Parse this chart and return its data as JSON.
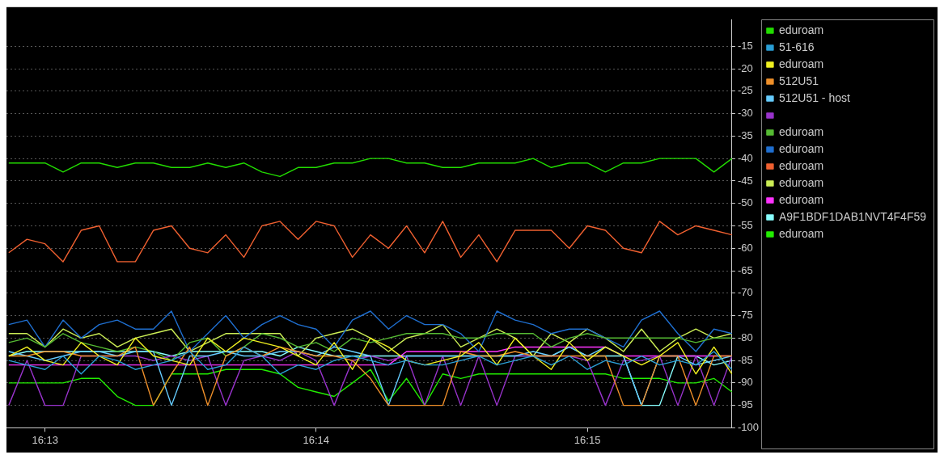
{
  "chart_data": {
    "type": "line",
    "x": [
      16.21444,
      16.21556,
      16.21667,
      16.21778,
      16.21889,
      16.22,
      16.22111,
      16.22222,
      16.22333,
      16.22444,
      16.22556,
      16.22667,
      16.22778,
      16.22889,
      16.23,
      16.23111,
      16.23222,
      16.23333,
      16.23444,
      16.23556,
      16.23667,
      16.23778,
      16.23889,
      16.24,
      16.24111,
      16.24222,
      16.24333,
      16.24444,
      16.24556,
      16.24667,
      16.24778,
      16.24889,
      16.25,
      16.25111,
      16.25222,
      16.25333,
      16.25444,
      16.25556,
      16.25667,
      16.25778,
      16.25889
    ],
    "xlim": [
      16.2143,
      16.25889
    ],
    "xticks": [
      {
        "value": 16.21667,
        "label": "16:13"
      },
      {
        "value": 16.23333,
        "label": "16:14"
      },
      {
        "value": 16.25,
        "label": "16:15"
      }
    ],
    "ylim": [
      -100,
      -9
    ],
    "yticks": [
      -15,
      -20,
      -25,
      -30,
      -35,
      -40,
      -45,
      -50,
      -55,
      -60,
      -65,
      -70,
      -75,
      -80,
      -85,
      -90,
      -95,
      -100
    ],
    "grid": "y",
    "legend": "top right",
    "marker": "none",
    "line_style": "solid",
    "series": [
      {
        "name": "eduroam",
        "color": "#22dd00",
        "values": [
          -41,
          -41,
          -41,
          -43,
          -41,
          -41,
          -42,
          -41,
          -41,
          -42,
          -42,
          -41,
          -42,
          -41,
          -43,
          -44,
          -42,
          -42,
          -41,
          -41,
          -40,
          -40,
          -41,
          -41,
          -42,
          -42,
          -41,
          -41,
          -41,
          -40,
          -42,
          -41,
          -41,
          -43,
          -41,
          -41,
          -40,
          -40,
          -40,
          -43,
          -40
        ]
      },
      {
        "name": "51-616",
        "color": "#2a9fd6",
        "values": [
          -85,
          -86,
          -87,
          -84,
          -88,
          -84,
          -85,
          -87,
          -86,
          -85,
          -83,
          -87,
          -86,
          -82,
          -84,
          -88,
          -86,
          -87,
          -85,
          -84,
          -85,
          -86,
          -85,
          -86,
          -86,
          -85,
          -84,
          -86,
          -85,
          -84,
          -86,
          -84,
          -87,
          -85,
          -86,
          -84,
          -86,
          -85,
          -86,
          -83,
          -87
        ]
      },
      {
        "name": "eduroam",
        "color": "#f0f020",
        "values": [
          -84,
          -82,
          -85,
          -86,
          -81,
          -84,
          -86,
          -80,
          -84,
          -85,
          -86,
          -80,
          -83,
          -80,
          -81,
          -82,
          -84,
          -86,
          -81,
          -87,
          -80,
          -82,
          -85,
          -86,
          -85,
          -84,
          -81,
          -86,
          -80,
          -84,
          -87,
          -81,
          -85,
          -82,
          -84,
          -86,
          -84,
          -81,
          -88,
          -82,
          -88
        ]
      },
      {
        "name": "512U51",
        "color": "#f0902a",
        "values": [
          -84,
          -84,
          -83,
          -83,
          -84,
          -84,
          -84,
          -82,
          -95,
          -88,
          -82,
          -95,
          -84,
          -82,
          -84,
          -82,
          -83,
          -84,
          -84,
          -85,
          -89,
          -95,
          -95,
          -95,
          -95,
          -83,
          -84,
          -84,
          -83,
          -84,
          -84,
          -84,
          -84,
          -84,
          -95,
          -95,
          -84,
          -84,
          -95,
          -84,
          -84
        ]
      },
      {
        "name": "512U51 - host",
        "color": "#66ccff",
        "values": [
          -83,
          -84,
          -85,
          -84,
          -83,
          -83,
          -84,
          -83,
          -83,
          -95,
          -84,
          -84,
          -83,
          -84,
          -84,
          -83,
          -83,
          -84,
          -82,
          -83,
          -84,
          -95,
          -84,
          -84,
          -84,
          -84,
          -84,
          -84,
          -84,
          -83,
          -84,
          -82,
          -84,
          -82,
          -84,
          -95,
          -84,
          -84,
          -86,
          -85,
          -84
        ]
      },
      {
        "color": "#9933cc",
        "values": [
          -95,
          -85,
          -95,
          -95,
          -84,
          -84,
          -84,
          -84,
          -85,
          -84,
          -85,
          -84,
          -95,
          -85,
          -84,
          -85,
          -83,
          -85,
          -95,
          -85,
          -84,
          -85,
          -84,
          -95,
          -84,
          -95,
          -84,
          -95,
          -84,
          -84,
          -84,
          -84,
          -85,
          -95,
          -85,
          -85,
          -84,
          -95,
          -84,
          -95,
          -84
        ]
      },
      {
        "name": "eduroam",
        "color": "#55bb33",
        "values": [
          -81,
          -80,
          -82,
          -79,
          -81,
          -82,
          -83,
          -82,
          -83,
          -85,
          -81,
          -80,
          -84,
          -82,
          -79,
          -80,
          -82,
          -81,
          -83,
          -80,
          -81,
          -80,
          -79,
          -79,
          -79,
          -80,
          -80,
          -79,
          -79,
          -79,
          -82,
          -80,
          -79,
          -80,
          -80,
          -80,
          -80,
          -80,
          -81,
          -80,
          -80
        ]
      },
      {
        "name": "eduroam",
        "color": "#1f6fd0",
        "values": [
          -77,
          -76,
          -82,
          -76,
          -80,
          -77,
          -76,
          -78,
          -78,
          -74,
          -83,
          -79,
          -75,
          -80,
          -77,
          -75,
          -77,
          -78,
          -82,
          -76,
          -74,
          -78,
          -75,
          -77,
          -77,
          -79,
          -83,
          -74,
          -76,
          -77,
          -79,
          -78,
          -78,
          -80,
          -82,
          -76,
          -74,
          -79,
          -83,
          -78,
          -79
        ]
      },
      {
        "name": "eduroam",
        "color": "#f06030",
        "values": [
          -61,
          -58,
          -59,
          -63,
          -56,
          -55,
          -63,
          -63,
          -56,
          -55,
          -60,
          -61,
          -57,
          -62,
          -55,
          -54,
          -58,
          -54,
          -55,
          -62,
          -57,
          -60,
          -55,
          -61,
          -54,
          -62,
          -57,
          -63,
          -56,
          -56,
          -56,
          -60,
          -55,
          -56,
          -60,
          -61,
          -54,
          -57,
          -55,
          -56,
          -57
        ]
      },
      {
        "name": "eduroam",
        "color": "#ccee55",
        "values": [
          -79,
          -79,
          -82,
          -78,
          -80,
          -79,
          -82,
          -80,
          -79,
          -78,
          -83,
          -81,
          -79,
          -79,
          -79,
          -79,
          -84,
          -80,
          -79,
          -78,
          -80,
          -83,
          -80,
          -79,
          -77,
          -82,
          -80,
          -78,
          -80,
          -84,
          -79,
          -81,
          -78,
          -80,
          -83,
          -78,
          -83,
          -80,
          -78,
          -80,
          -79
        ]
      },
      {
        "name": "eduroam",
        "color": "#ff33ff",
        "values": [
          -86,
          -86,
          -86,
          -86,
          -86,
          -86,
          -86,
          -86,
          -86,
          -86,
          -86,
          -86,
          -86,
          -86,
          -86,
          -86,
          -86,
          -86,
          -86,
          -86,
          -86,
          -86,
          -83,
          -83,
          -83,
          -83,
          -83,
          -83,
          -82,
          -82,
          -82,
          -82,
          -82,
          -82,
          -84,
          -84,
          -84,
          -84,
          -84,
          -84,
          -84
        ]
      },
      {
        "name": "A9F1BDF1DAB1NVT4F4F59",
        "color": "#88ffff",
        "values": [
          -84,
          -83,
          -83,
          -83,
          -83,
          -83,
          -83,
          -83,
          -83,
          -84,
          -83,
          -83,
          -83,
          -83,
          -83,
          -84,
          -82,
          -83,
          -84,
          -84,
          -84,
          -84,
          -84,
          -84,
          -84,
          -84,
          -84,
          -84,
          -84,
          -84,
          -84,
          -82,
          -84,
          -84,
          -84,
          -95,
          -95,
          -84,
          -84,
          -86,
          -85
        ]
      },
      {
        "name": "eduroam",
        "color": "#22ee00",
        "values": [
          -90,
          -90,
          -90,
          -90,
          -89,
          -89,
          -93,
          -95,
          -95,
          -88,
          -88,
          -88,
          -87,
          -87,
          -87,
          -88,
          -91,
          -92,
          -93,
          -90,
          -87,
          -94,
          -89,
          -95,
          -88,
          -89,
          -88,
          -88,
          -88,
          -88,
          -88,
          -88,
          -88,
          -88,
          -89,
          -89,
          -89,
          -90,
          -90,
          -89,
          -92
        ]
      }
    ]
  }
}
